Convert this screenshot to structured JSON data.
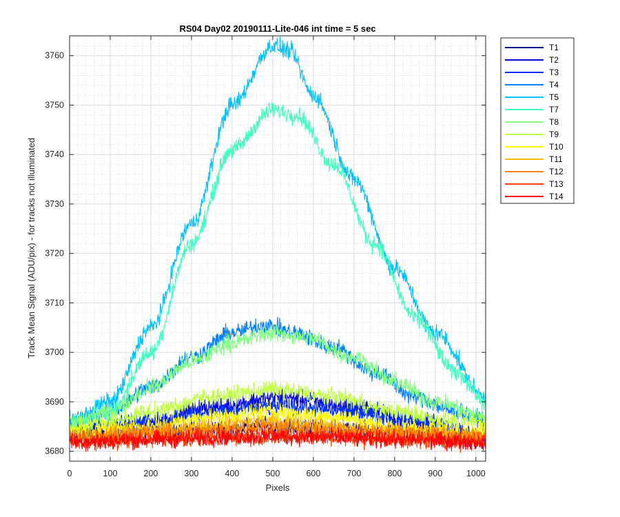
{
  "chart_data": {
    "type": "line",
    "title": "RS04 Day02 20190111-Lite-046 int time = 5 sec",
    "xlabel": "Pixels",
    "ylabel": "Track Mean Signal (ADU/pix) - for tracks not illuminated",
    "xlim": [
      0,
      1024
    ],
    "ylim": [
      3678,
      3764
    ],
    "xticks": [
      0,
      100,
      200,
      300,
      400,
      500,
      600,
      700,
      800,
      900,
      1000
    ],
    "yticks": [
      3680,
      3690,
      3700,
      3710,
      3720,
      3730,
      3740,
      3750,
      3760
    ],
    "grid": true,
    "minor_grid": true,
    "legend_position": "outside-top-right",
    "noise_amplitude": 1.5,
    "series": [
      {
        "name": "T1",
        "color": "#00008f",
        "peak_x": 520,
        "points": [
          [
            0,
            3683
          ],
          [
            200,
            3684
          ],
          [
            512,
            3685
          ],
          [
            800,
            3684
          ],
          [
            1024,
            3682
          ]
        ]
      },
      {
        "name": "T2",
        "color": "#0000d4",
        "points": [
          [
            0,
            3684
          ],
          [
            200,
            3686
          ],
          [
            350,
            3689
          ],
          [
            520,
            3691
          ],
          [
            700,
            3689
          ],
          [
            850,
            3686
          ],
          [
            1024,
            3683
          ]
        ]
      },
      {
        "name": "T3",
        "color": "#0030ff",
        "points": [
          [
            0,
            3684
          ],
          [
            200,
            3686
          ],
          [
            350,
            3688
          ],
          [
            520,
            3689
          ],
          [
            700,
            3688
          ],
          [
            850,
            3686
          ],
          [
            1024,
            3683
          ]
        ]
      },
      {
        "name": "T4",
        "color": "#0080ff",
        "points": [
          [
            0,
            3686
          ],
          [
            100,
            3688
          ],
          [
            200,
            3693
          ],
          [
            300,
            3699
          ],
          [
            400,
            3704
          ],
          [
            480,
            3705.5
          ],
          [
            550,
            3704
          ],
          [
            650,
            3701
          ],
          [
            750,
            3696
          ],
          [
            850,
            3691
          ],
          [
            950,
            3688
          ],
          [
            1024,
            3686
          ]
        ]
      },
      {
        "name": "T5",
        "color": "#00c0ff",
        "points": [
          [
            0,
            3686
          ],
          [
            100,
            3690
          ],
          [
            200,
            3705
          ],
          [
            300,
            3726
          ],
          [
            400,
            3750
          ],
          [
            500,
            3762
          ],
          [
            540,
            3761
          ],
          [
            600,
            3752
          ],
          [
            700,
            3735
          ],
          [
            800,
            3717
          ],
          [
            900,
            3704
          ],
          [
            1024,
            3691
          ]
        ]
      },
      {
        "name": "T7",
        "color": "#40ffbf",
        "points": [
          [
            0,
            3685
          ],
          [
            100,
            3688
          ],
          [
            200,
            3700
          ],
          [
            300,
            3722
          ],
          [
            400,
            3741
          ],
          [
            500,
            3749
          ],
          [
            560,
            3748
          ],
          [
            650,
            3738
          ],
          [
            750,
            3722
          ],
          [
            850,
            3707
          ],
          [
            950,
            3696
          ],
          [
            1024,
            3690
          ]
        ]
      },
      {
        "name": "T8",
        "color": "#80ff80",
        "points": [
          [
            0,
            3686
          ],
          [
            100,
            3688
          ],
          [
            200,
            3693
          ],
          [
            300,
            3698
          ],
          [
            400,
            3702
          ],
          [
            500,
            3704
          ],
          [
            580,
            3703
          ],
          [
            700,
            3699
          ],
          [
            800,
            3694
          ],
          [
            900,
            3690
          ],
          [
            1024,
            3687
          ]
        ]
      },
      {
        "name": "T9",
        "color": "#bfff40",
        "points": [
          [
            0,
            3685
          ],
          [
            100,
            3686
          ],
          [
            200,
            3688
          ],
          [
            350,
            3691
          ],
          [
            500,
            3692.5
          ],
          [
            650,
            3691
          ],
          [
            800,
            3688
          ],
          [
            950,
            3686
          ],
          [
            1024,
            3686
          ]
        ]
      },
      {
        "name": "T10",
        "color": "#ffff00",
        "points": [
          [
            0,
            3684
          ],
          [
            200,
            3685
          ],
          [
            350,
            3687
          ],
          [
            500,
            3688
          ],
          [
            650,
            3687
          ],
          [
            800,
            3685
          ],
          [
            1024,
            3684
          ]
        ]
      },
      {
        "name": "T11",
        "color": "#ffbf00",
        "points": [
          [
            0,
            3683
          ],
          [
            200,
            3684
          ],
          [
            500,
            3686
          ],
          [
            800,
            3684
          ],
          [
            1024,
            3683
          ]
        ]
      },
      {
        "name": "T12",
        "color": "#ff8000",
        "points": [
          [
            0,
            3683
          ],
          [
            300,
            3684
          ],
          [
            500,
            3685
          ],
          [
            700,
            3684
          ],
          [
            1024,
            3683
          ]
        ]
      },
      {
        "name": "T13",
        "color": "#ff4000",
        "points": [
          [
            0,
            3682
          ],
          [
            500,
            3683
          ],
          [
            1024,
            3682
          ]
        ]
      },
      {
        "name": "T14",
        "color": "#ff0000",
        "points": [
          [
            0,
            3682
          ],
          [
            500,
            3683
          ],
          [
            1024,
            3682
          ]
        ]
      }
    ]
  }
}
